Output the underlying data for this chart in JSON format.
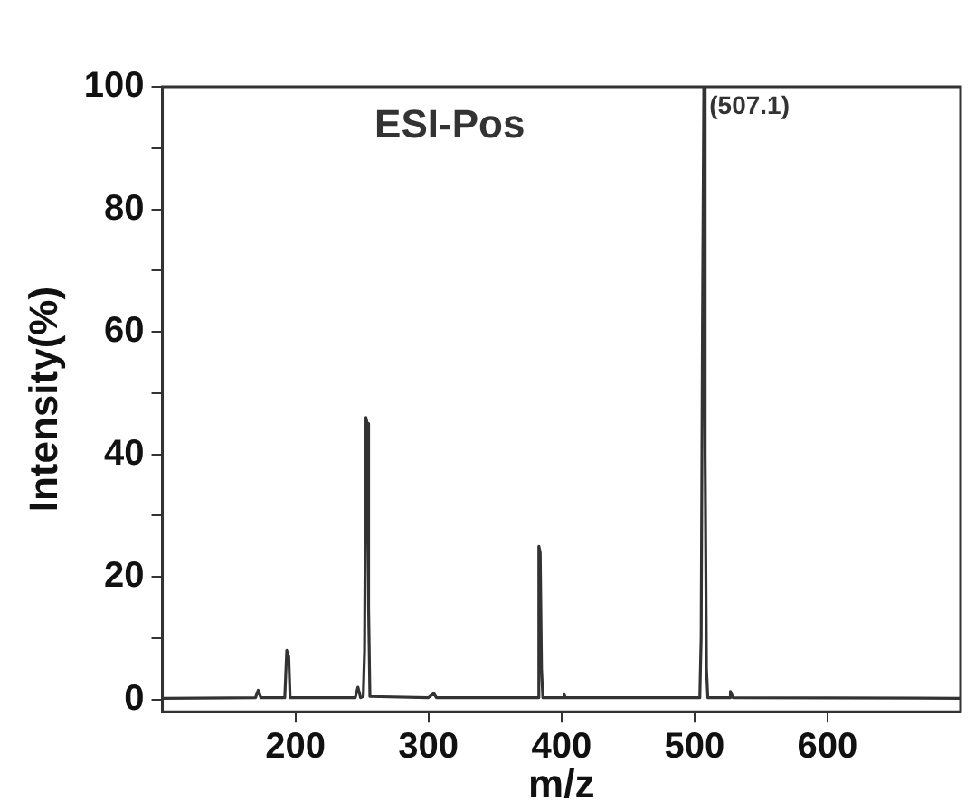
{
  "chart_data": {
    "type": "line",
    "xlabel": "m/z",
    "ylabel": "Intensity(%)",
    "annotations": [
      "ESI-Pos",
      {
        "text": "(507.1)",
        "x": 507.1,
        "y": 100
      }
    ],
    "xlim": [
      100,
      700
    ],
    "xticks": [
      200,
      300,
      400,
      500,
      600
    ],
    "ylim": [
      -2,
      100
    ],
    "yticks": [
      0,
      {
        "value": 10,
        "label": null
      },
      20,
      {
        "value": 30,
        "label": null
      },
      40,
      {
        "value": 50,
        "label": null
      },
      60,
      {
        "value": 70,
        "label": null
      },
      80,
      {
        "value": 90,
        "label": null
      },
      100
    ],
    "grid": false,
    "legend": false,
    "marker": "none",
    "line_style": "solid",
    "series": [
      {
        "color": "#333333",
        "x": [
          100,
          170,
          172,
          174,
          192,
          193.5,
          195,
          196,
          245,
          247,
          249,
          251,
          252,
          253,
          254,
          255,
          256,
          300,
          304,
          306,
          382,
          383,
          384,
          385,
          386,
          401,
          402,
          403,
          504,
          505,
          506,
          507,
          508,
          509,
          510,
          526,
          527,
          529,
          700
        ],
        "values": [
          0.2,
          0.3,
          1.5,
          0.3,
          0.3,
          8,
          7,
          0.3,
          0.3,
          2,
          0.3,
          0.5,
          8,
          46,
          45,
          15,
          0.5,
          0.3,
          1,
          0.3,
          0.3,
          25,
          24,
          5,
          0.3,
          0.3,
          0.8,
          0.3,
          0.3,
          10,
          61,
          100,
          40,
          5,
          0.3,
          0.3,
          1.3,
          0.3,
          0.2
        ]
      }
    ]
  }
}
